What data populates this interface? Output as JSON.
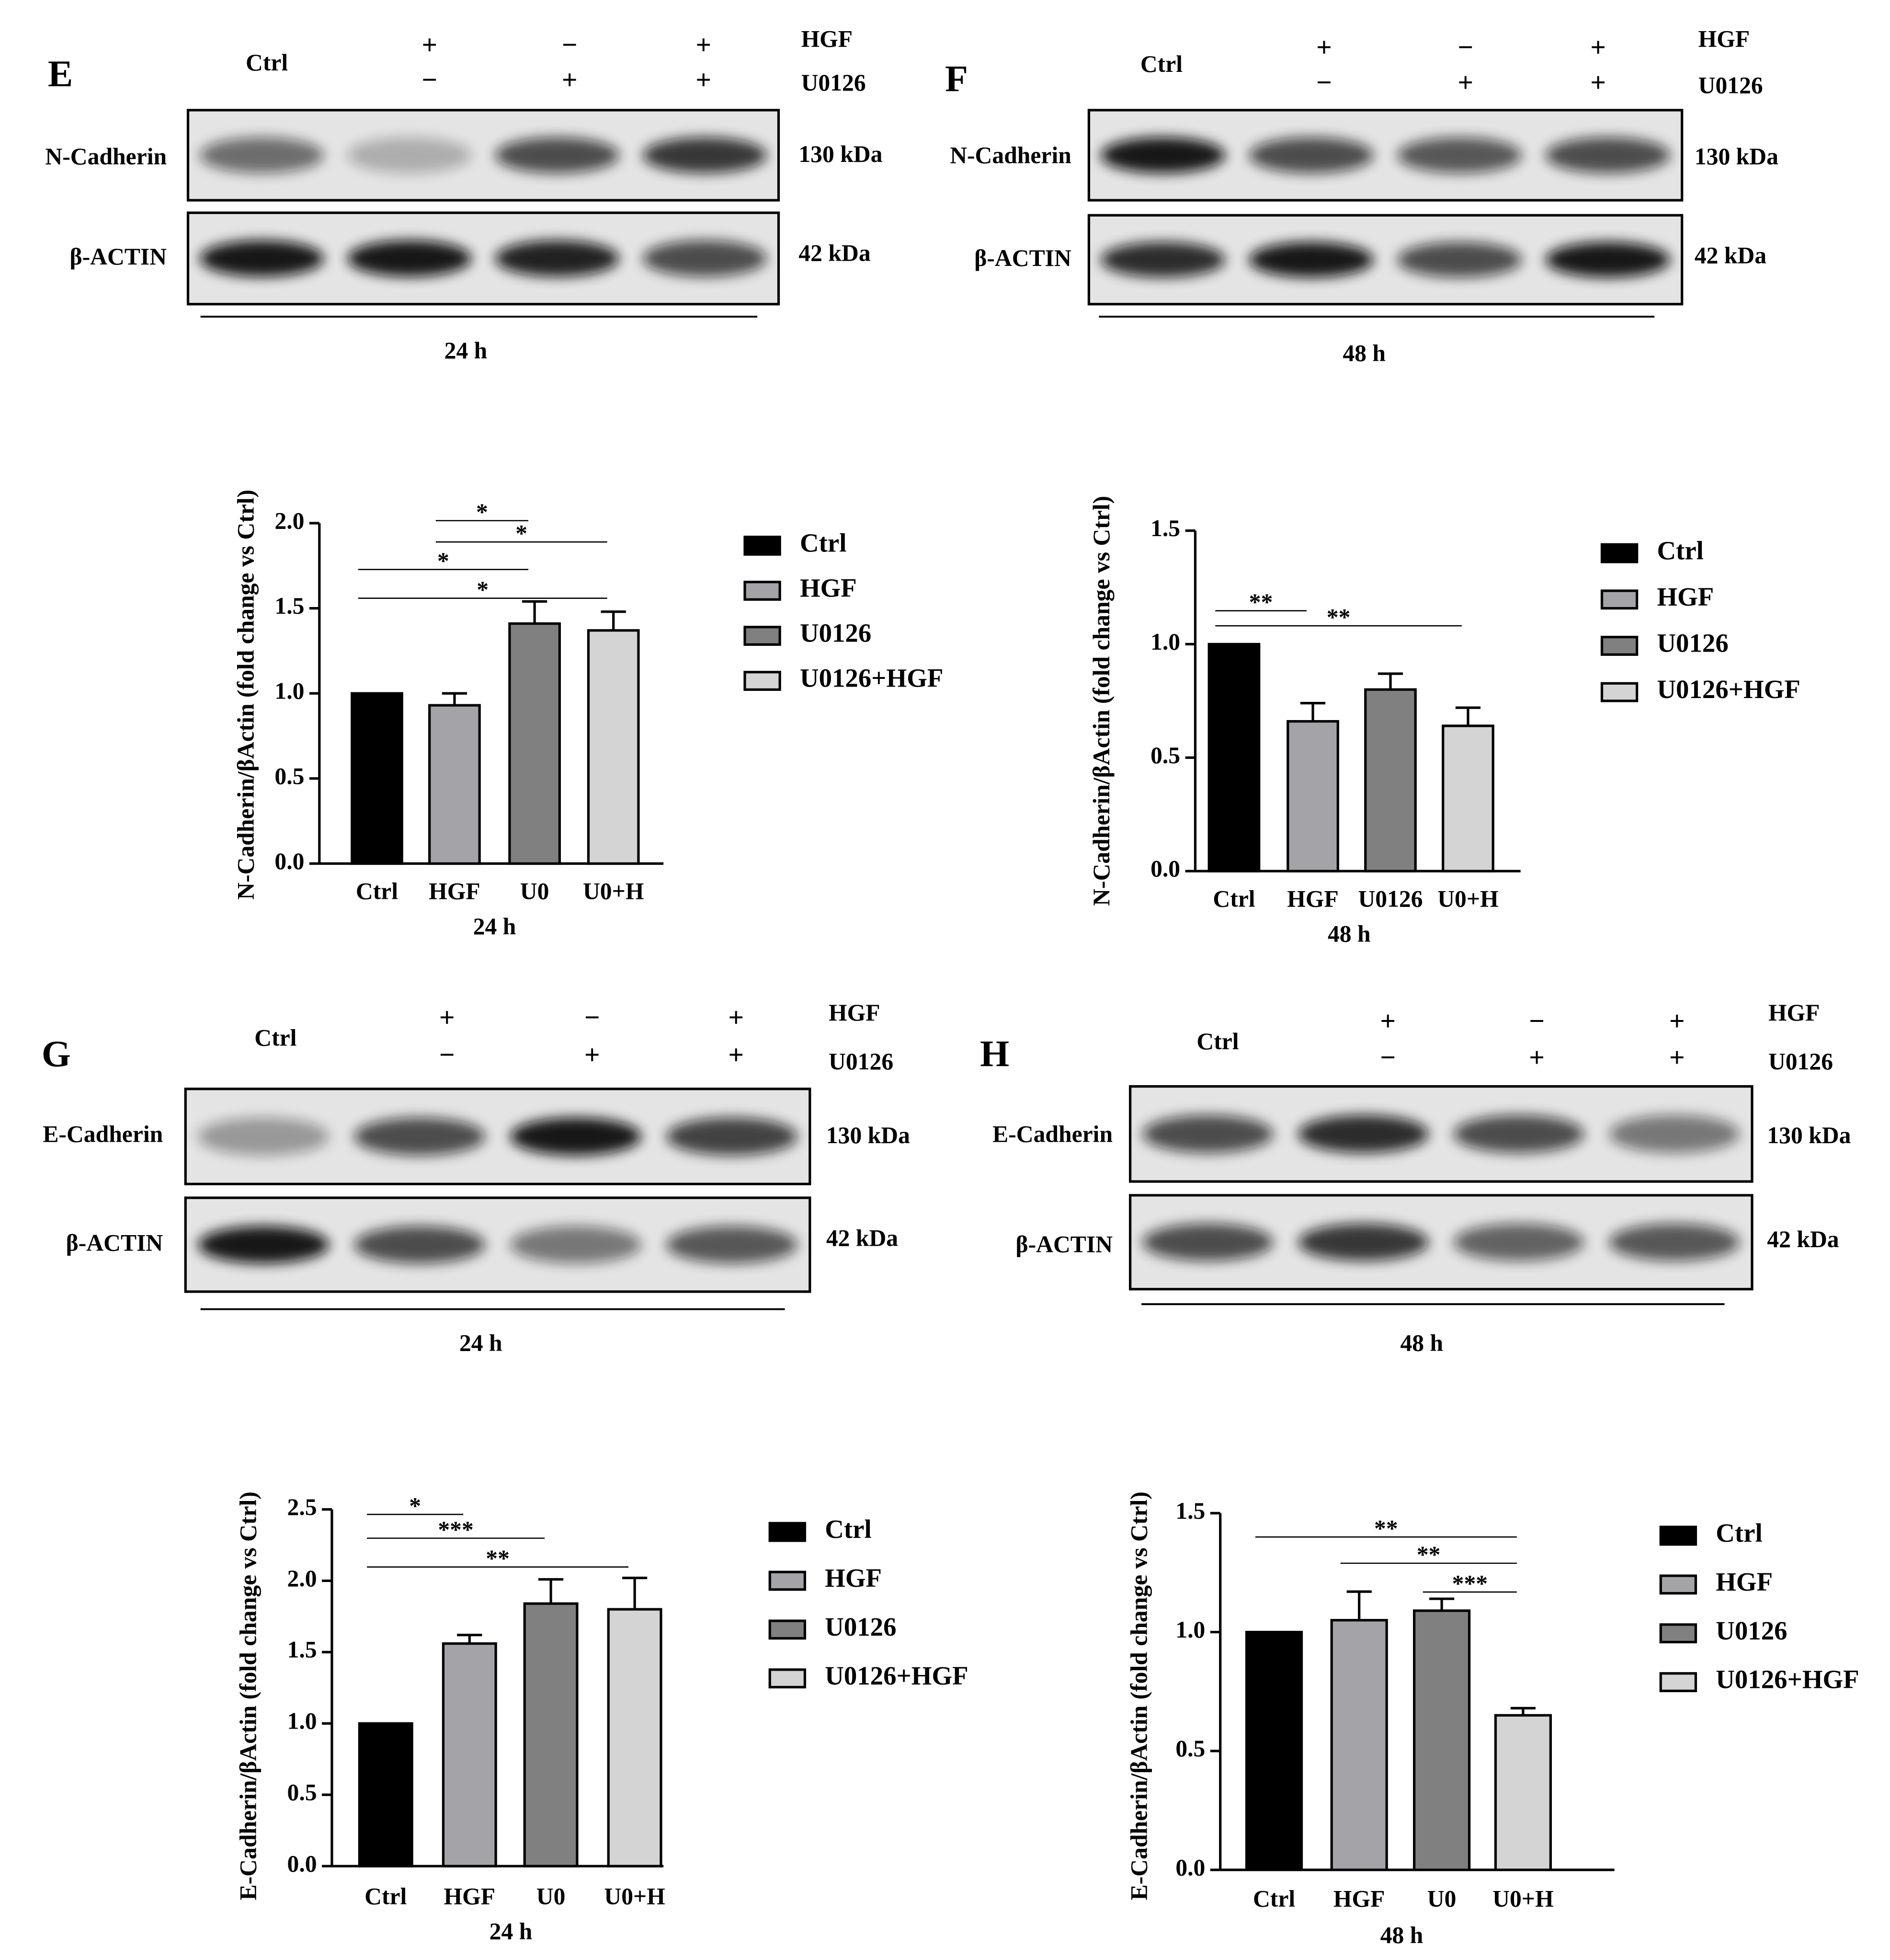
{
  "blots": [
    {
      "letter": "E",
      "ctrl": "Ctrl",
      "treatments": [
        {
          "name": "HGF",
          "signs": [
            "+",
            "−",
            "+"
          ]
        },
        {
          "name": "U0126",
          "signs": [
            "−",
            "+",
            "+"
          ]
        }
      ],
      "rows": [
        {
          "protein": "N-Cadherin",
          "size": "130 kDa"
        },
        {
          "protein": "β-ACTIN",
          "size": "42 kDa"
        }
      ],
      "time": "24 h"
    },
    {
      "letter": "F",
      "ctrl": "Ctrl",
      "treatments": [
        {
          "name": "HGF",
          "signs": [
            "+",
            "−",
            "+"
          ]
        },
        {
          "name": "U0126",
          "signs": [
            "−",
            "+",
            "+"
          ]
        }
      ],
      "rows": [
        {
          "protein": "N-Cadherin",
          "size": "130 kDa"
        },
        {
          "protein": "β-ACTIN",
          "size": "42 kDa"
        }
      ],
      "time": "48 h"
    },
    {
      "letter": "G",
      "ctrl": "Ctrl",
      "treatments": [
        {
          "name": "HGF",
          "signs": [
            "+",
            "−",
            "+"
          ]
        },
        {
          "name": "U0126",
          "signs": [
            "−",
            "+",
            "+"
          ]
        }
      ],
      "rows": [
        {
          "protein": "E-Cadherin",
          "size": "130 kDa"
        },
        {
          "protein": "β-ACTIN",
          "size": "42 kDa"
        }
      ],
      "time": "24 h"
    },
    {
      "letter": "H",
      "ctrl": "Ctrl",
      "treatments": [
        {
          "name": "HGF",
          "signs": [
            "+",
            "−",
            "+"
          ]
        },
        {
          "name": "U0126",
          "signs": [
            "−",
            "+",
            "+"
          ]
        }
      ],
      "rows": [
        {
          "protein": "E-Cadherin",
          "size": "130 kDa"
        },
        {
          "protein": "β-ACTIN",
          "size": "42 kDa"
        }
      ],
      "time": "48 h"
    }
  ],
  "chart_data": [
    {
      "type": "bar",
      "ylabel": "N-Cadherin/βActin (fold change vs Ctrl)",
      "xlabel": "24 h",
      "categories": [
        "Ctrl",
        "HGF",
        "U0",
        "U0+H"
      ],
      "values": [
        1.0,
        0.93,
        1.41,
        1.37
      ],
      "errors": [
        0,
        0.07,
        0.13,
        0.11
      ],
      "colors": [
        "#000000",
        "#a3a3a8",
        "#808080",
        "#d4d4d4"
      ],
      "legend": [
        "Ctrl",
        "HGF",
        "U0126",
        "U0126+HGF"
      ],
      "ylim": [
        0,
        2
      ],
      "yticks": [
        {
          "value": 0,
          "label": "0.0"
        },
        0.5,
        {
          "value": 1,
          "label": "1.0"
        },
        1.5,
        {
          "value": 2,
          "label": "2.0"
        }
      ],
      "annotations": [
        {
          "from": 1,
          "to": 2,
          "label": "*"
        },
        {
          "from": 1,
          "to": 3,
          "label": "*"
        },
        {
          "from": 0,
          "to": 2,
          "label": "*"
        },
        {
          "from": 0,
          "to": 3,
          "label": "*"
        }
      ]
    },
    {
      "type": "bar",
      "ylabel": "N-Cadherin/βActin (fold change vs Ctrl)",
      "xlabel": "48 h",
      "categories": [
        "Ctrl",
        "HGF",
        "U0126",
        "U0+H"
      ],
      "values": [
        1.0,
        0.66,
        0.8,
        0.64
      ],
      "errors": [
        0,
        0.08,
        0.07,
        0.08
      ],
      "colors": [
        "#000000",
        "#a3a3a8",
        "#808080",
        "#d4d4d4"
      ],
      "legend": [
        "Ctrl",
        "HGF",
        "U0126",
        "U0126+HGF"
      ],
      "ylim": [
        0,
        1.5
      ],
      "yticks": [
        {
          "value": 0,
          "label": "0.0"
        },
        0.5,
        {
          "value": 1,
          "label": "1.0"
        },
        1.5
      ],
      "annotations": [
        {
          "from": 0,
          "to": 1,
          "label": "**"
        },
        {
          "from": 0,
          "to": 3,
          "label": "**"
        }
      ]
    },
    {
      "type": "bar",
      "ylabel": "E-Cadherin/βActin (fold change vs Ctrl)",
      "xlabel": "24 h",
      "categories": [
        "Ctrl",
        "HGF",
        "U0",
        "U0+H"
      ],
      "values": [
        1.0,
        1.56,
        1.84,
        1.8
      ],
      "errors": [
        0,
        0.06,
        0.17,
        0.22
      ],
      "colors": [
        "#000000",
        "#a3a3a8",
        "#808080",
        "#d4d4d4"
      ],
      "legend": [
        "Ctrl",
        "HGF",
        "U0126",
        "U0126+HGF"
      ],
      "ylim": [
        0,
        2.5
      ],
      "yticks": [
        {
          "value": 0,
          "label": "0.0"
        },
        0.5,
        {
          "value": 1,
          "label": "1.0"
        },
        1.5,
        {
          "value": 2,
          "label": "2.0"
        },
        2.5
      ],
      "annotations": [
        {
          "from": 0,
          "to": 1,
          "label": "*"
        },
        {
          "from": 0,
          "to": 2,
          "label": "***"
        },
        {
          "from": 0,
          "to": 3,
          "label": "**"
        }
      ]
    },
    {
      "type": "bar",
      "ylabel": "E-Cadherin/βActin (fold change vs Ctrl)",
      "xlabel": "48 h",
      "categories": [
        "Ctrl",
        "HGF",
        "U0",
        "U0+H"
      ],
      "values": [
        1.0,
        1.05,
        1.09,
        0.65
      ],
      "errors": [
        0,
        0.12,
        0.05,
        0.03
      ],
      "colors": [
        "#000000",
        "#a3a3a8",
        "#808080",
        "#d4d4d4"
      ],
      "legend": [
        "Ctrl",
        "HGF",
        "U0126",
        "U0126+HGF"
      ],
      "ylim": [
        0,
        1.5
      ],
      "yticks": [
        {
          "value": 0,
          "label": "0.0"
        },
        0.5,
        {
          "value": 1,
          "label": "1.0"
        },
        1.5
      ],
      "annotations": [
        {
          "from": 0,
          "to": 3,
          "label": "**"
        },
        {
          "from": 1,
          "to": 3,
          "label": "**"
        },
        {
          "from": 2,
          "to": 3,
          "label": "***"
        }
      ]
    }
  ]
}
